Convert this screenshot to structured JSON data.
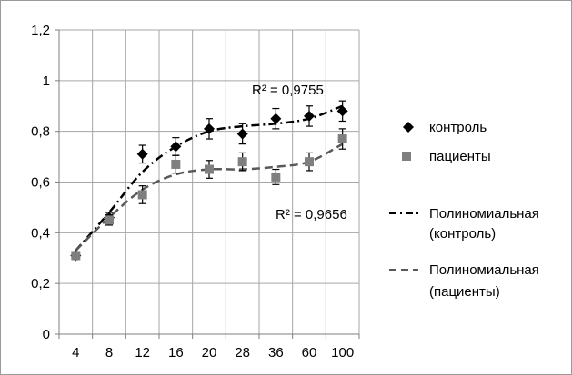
{
  "chart_data": {
    "type": "scatter",
    "categories": [
      "4",
      "8",
      "12",
      "16",
      "20",
      "28",
      "36",
      "60",
      "100"
    ],
    "ylim": [
      0,
      1.2
    ],
    "yticks": [
      "0",
      "0,2",
      "0,4",
      "0,6",
      "0,8",
      "1",
      "1,2"
    ],
    "grid": true,
    "legend_position": "right",
    "series": [
      {
        "name": "контроль",
        "marker": "diamond",
        "color": "#000000",
        "values": [
          0.31,
          0.46,
          0.71,
          0.74,
          0.81,
          0.79,
          0.85,
          0.86,
          0.88
        ],
        "errors": [
          0.015,
          0.02,
          0.035,
          0.035,
          0.04,
          0.04,
          0.04,
          0.04,
          0.04
        ]
      },
      {
        "name": "пациенты",
        "marker": "square",
        "color": "#7f7f7f",
        "values": [
          0.31,
          0.45,
          0.55,
          0.67,
          0.65,
          0.68,
          0.62,
          0.68,
          0.77
        ],
        "errors": [
          0.015,
          0.02,
          0.035,
          0.035,
          0.035,
          0.035,
          0.03,
          0.035,
          0.04
        ]
      }
    ],
    "trendlines": [
      {
        "name": "Полиномиальная (контроль)",
        "name_lines": [
          "Полиномиальная",
          "(контроль)"
        ],
        "style": "dash-dot",
        "color": "#000000",
        "r2_label": "R² = 0,9755",
        "values": [
          0.33,
          0.48,
          0.64,
          0.74,
          0.8,
          0.82,
          0.83,
          0.85,
          0.9
        ]
      },
      {
        "name": "Полиномиальная (пациенты)",
        "name_lines": [
          "Полиномиальная",
          "(пациенты)"
        ],
        "style": "dashed",
        "color": "#595959",
        "r2_label": "R² = 0,9656",
        "values": [
          0.33,
          0.46,
          0.57,
          0.63,
          0.65,
          0.65,
          0.66,
          0.68,
          0.75
        ]
      }
    ]
  }
}
